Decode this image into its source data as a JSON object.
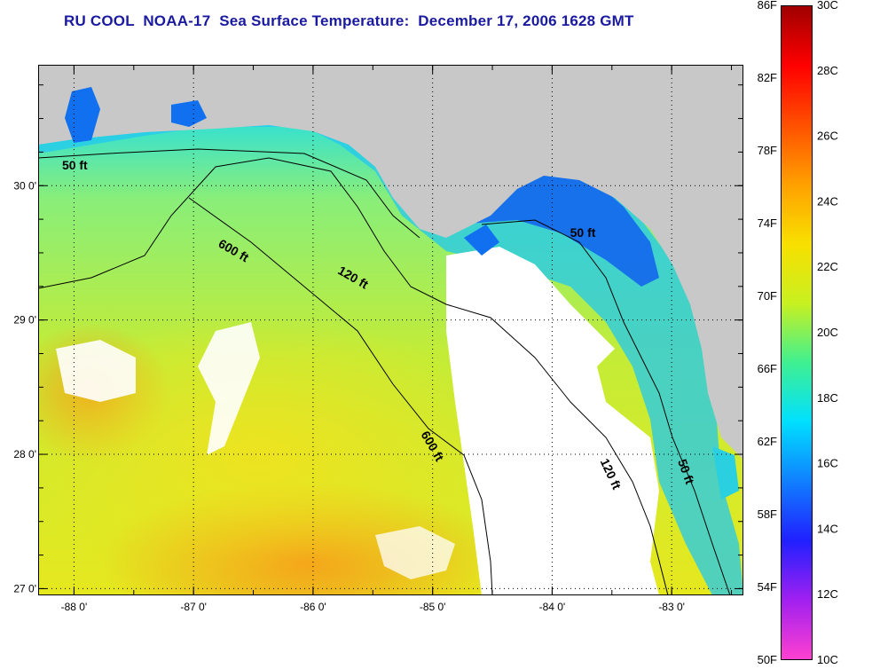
{
  "title": "RU COOL  NOAA-17  Sea Surface Temperature:  December 17, 2006 1628 GMT",
  "map": {
    "lon_range": [
      -88.3,
      -82.4
    ],
    "lat_range": [
      26.95,
      30.9
    ],
    "x_ticks": [
      {
        "value": -88,
        "label": "-88 0'"
      },
      {
        "value": -87,
        "label": "-87 0'"
      },
      {
        "value": -86,
        "label": "-86 0'"
      },
      {
        "value": -85,
        "label": "-85 0'"
      },
      {
        "value": -84,
        "label": "-84 0'"
      },
      {
        "value": -83,
        "label": "-83 0'"
      }
    ],
    "y_ticks": [
      {
        "value": 30,
        "label": "30 0'"
      },
      {
        "value": 29,
        "label": "29 0'"
      },
      {
        "value": 28,
        "label": "28 0'"
      },
      {
        "value": 27,
        "label": "27 0'"
      }
    ],
    "contour_labels": [
      {
        "text": "50 ft",
        "lon": -88.1,
        "lat": 30.12
      },
      {
        "text": "600 ft",
        "lon": -86.8,
        "lat": 29.55
      },
      {
        "text": "120 ft",
        "lon": -85.8,
        "lat": 29.35
      },
      {
        "text": "50 ft",
        "lon": -83.85,
        "lat": 29.62
      },
      {
        "text": "600 ft",
        "lon": -85.1,
        "lat": 28.15
      },
      {
        "text": "120 ft",
        "lon": -83.6,
        "lat": 27.95
      },
      {
        "text": "50 ft",
        "lon": -82.95,
        "lat": 27.95
      }
    ],
    "colors": {
      "land": "#c8c8c8",
      "cloud": "#ffffff",
      "warm": "#f7a020",
      "mid": "#d6ef2e",
      "cool": "#18e0e8",
      "cold": "#1060f0"
    }
  },
  "colorbar": {
    "fahrenheit_labels": [
      "86F",
      "82F",
      "78F",
      "74F",
      "70F",
      "66F",
      "62F",
      "58F",
      "54F",
      "50F"
    ],
    "celsius_labels": [
      "30C",
      "28C",
      "26C",
      "24C",
      "22C",
      "20C",
      "18C",
      "16C",
      "14C",
      "12C",
      "10C"
    ],
    "stops": [
      "#ff40d0",
      "#a020f0",
      "#2020ff",
      "#1080ff",
      "#00e0ff",
      "#40f090",
      "#c8f020",
      "#f8e000",
      "#ffa000",
      "#ff5000",
      "#ff0000",
      "#a00000"
    ]
  }
}
